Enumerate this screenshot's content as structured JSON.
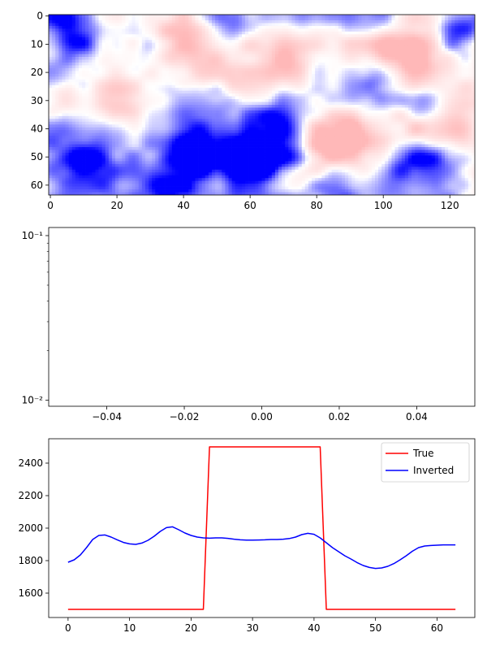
{
  "chart_data": [
    {
      "type": "heatmap",
      "title": "",
      "xlabel": "",
      "ylabel": "",
      "rows": 64,
      "cols": 128,
      "xlim": [
        -0.5,
        127.5
      ],
      "ylim": [
        63.5,
        -0.5
      ],
      "xticks": [
        0,
        20,
        40,
        60,
        80,
        100,
        120
      ],
      "yticks": [
        0,
        10,
        20,
        30,
        40,
        50,
        60
      ],
      "colormap": "bwr",
      "colors": {
        "low": "#0000ff",
        "mid": "#ffffff",
        "high": "#ff0000"
      },
      "value_range": [
        -1,
        1
      ],
      "description_fields": {
        "pattern": "smooth random field, mostly blue and white with pale red patches"
      }
    },
    {
      "type": "line",
      "title": "",
      "xlabel": "",
      "ylabel": "",
      "yscale": "log",
      "xlim": [
        -0.055,
        0.055
      ],
      "ylim": [
        0.0092,
        0.112
      ],
      "xticks": [
        -0.04,
        -0.02,
        0.0,
        0.02,
        0.04
      ],
      "xtick_labels": [
        "−0.04",
        "−0.02",
        "0.00",
        "0.02",
        "0.04"
      ],
      "yticks_major": [
        0.01,
        0.1
      ],
      "ytick_labels": [
        "10⁻²",
        "10⁻¹"
      ],
      "series": []
    },
    {
      "type": "line",
      "title": "",
      "xlabel": "",
      "ylabel": "",
      "xlim": [
        -3.15,
        66.15
      ],
      "ylim": [
        1450,
        2550
      ],
      "xticks": [
        0,
        10,
        20,
        30,
        40,
        50,
        60
      ],
      "yticks": [
        1600,
        1800,
        2000,
        2200,
        2400
      ],
      "legend": {
        "position": "top-right"
      },
      "series": [
        {
          "name": "True",
          "color": "#ff0000",
          "x": [
            0,
            22,
            23,
            41,
            42,
            63
          ],
          "y": [
            1500,
            1500,
            2500,
            2500,
            1500,
            1500
          ]
        },
        {
          "name": "Inverted",
          "color": "#0000ff",
          "x": [
            0,
            1,
            2,
            3,
            4,
            5,
            6,
            7,
            8,
            9,
            10,
            11,
            12,
            13,
            14,
            15,
            16,
            17,
            18,
            19,
            20,
            21,
            22,
            23,
            24,
            25,
            26,
            27,
            28,
            29,
            30,
            31,
            32,
            33,
            34,
            35,
            36,
            37,
            38,
            39,
            40,
            41,
            42,
            43,
            44,
            45,
            46,
            47,
            48,
            49,
            50,
            51,
            52,
            53,
            54,
            55,
            56,
            57,
            58,
            59,
            60,
            61,
            62,
            63
          ],
          "y": [
            1790,
            1805,
            1835,
            1880,
            1930,
            1955,
            1958,
            1945,
            1928,
            1912,
            1903,
            1900,
            1908,
            1925,
            1950,
            1980,
            2003,
            2008,
            1990,
            1970,
            1955,
            1945,
            1940,
            1938,
            1940,
            1940,
            1937,
            1932,
            1928,
            1926,
            1926,
            1927,
            1928,
            1930,
            1930,
            1932,
            1936,
            1945,
            1960,
            1968,
            1962,
            1940,
            1910,
            1880,
            1855,
            1830,
            1810,
            1788,
            1770,
            1758,
            1752,
            1755,
            1765,
            1782,
            1805,
            1830,
            1858,
            1880,
            1890,
            1893,
            1895,
            1897,
            1897,
            1897
          ]
        }
      ]
    }
  ]
}
